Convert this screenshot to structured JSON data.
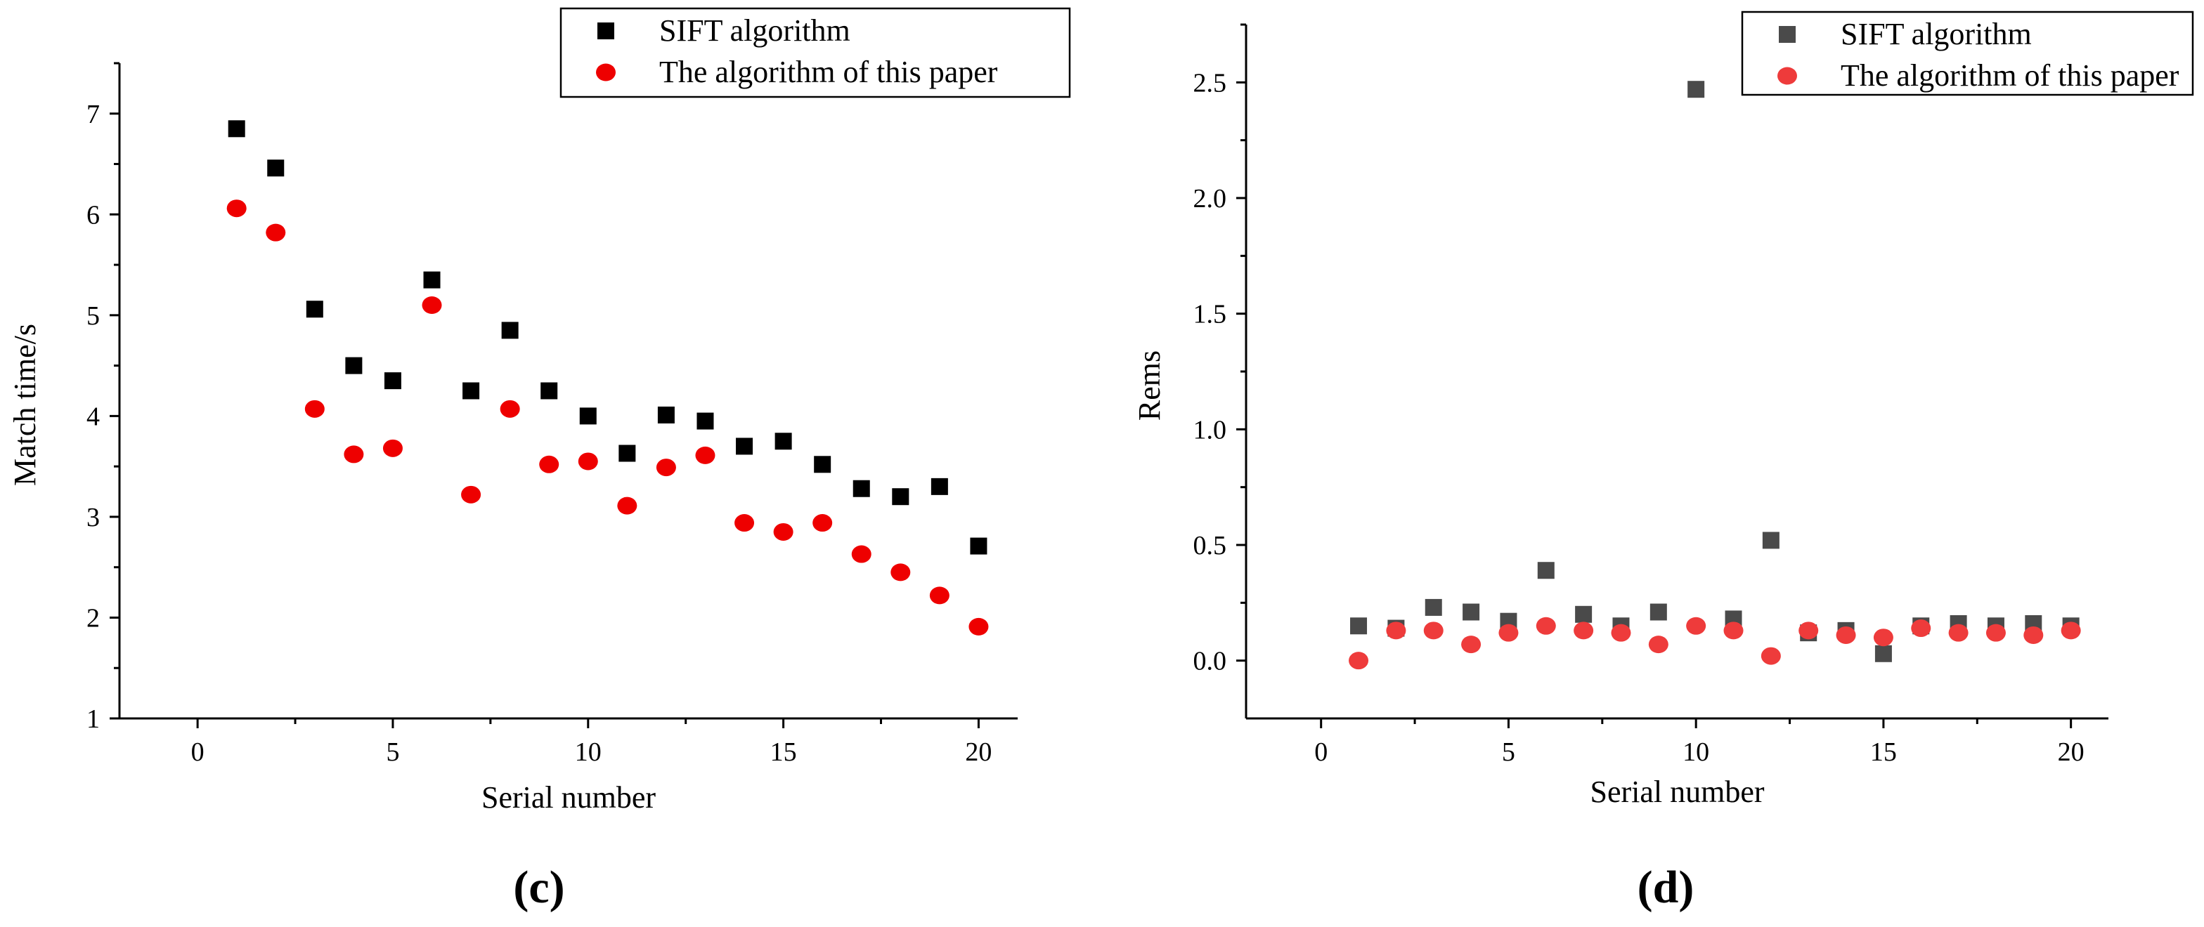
{
  "chart_data": [
    {
      "type": "scatter",
      "panel_label": "(c)",
      "title": "",
      "xlabel": "Serial number",
      "ylabel": "Match time/s",
      "xlim": [
        -2,
        21
      ],
      "ylim": [
        1,
        7.5
      ],
      "xticks": [
        0,
        5,
        10,
        15,
        20
      ],
      "yticks": [
        1,
        2,
        3,
        4,
        5,
        6,
        7
      ],
      "grid": false,
      "legend_position": "top-right",
      "x": [
        1,
        2,
        3,
        4,
        5,
        6,
        7,
        8,
        9,
        10,
        11,
        12,
        13,
        14,
        15,
        16,
        17,
        18,
        19,
        20
      ],
      "series": [
        {
          "name": "SIFT algorithm",
          "marker": "square",
          "color": "#000000",
          "values": [
            6.85,
            6.46,
            5.06,
            4.5,
            4.35,
            5.35,
            4.25,
            4.85,
            4.25,
            4.0,
            3.63,
            4.01,
            3.95,
            3.7,
            3.75,
            3.52,
            3.28,
            3.2,
            3.3,
            2.71
          ]
        },
        {
          "name": "The algorithm of this paper",
          "marker": "circle",
          "color": "#ee0000",
          "values": [
            6.06,
            5.82,
            4.07,
            3.62,
            3.68,
            5.1,
            3.22,
            4.07,
            3.52,
            3.55,
            3.11,
            3.49,
            3.61,
            2.94,
            2.85,
            2.94,
            2.63,
            2.45,
            2.22,
            1.91
          ]
        }
      ]
    },
    {
      "type": "scatter",
      "panel_label": "(d)",
      "title": "",
      "xlabel": "Serial number",
      "ylabel": "Rems",
      "xlim": [
        -2,
        21
      ],
      "ylim": [
        -0.25,
        2.75
      ],
      "xticks": [
        0,
        5,
        10,
        15,
        20
      ],
      "yticks": [
        0.0,
        0.5,
        1.0,
        1.5,
        2.0,
        2.5
      ],
      "yticklabels": [
        "0.0",
        "0.5",
        "1.0",
        "1.5",
        "2.0",
        "2.5"
      ],
      "grid": false,
      "legend_position": "top-right",
      "x": [
        1,
        2,
        3,
        4,
        5,
        6,
        7,
        8,
        9,
        10,
        11,
        12,
        13,
        14,
        15,
        16,
        17,
        18,
        19,
        20
      ],
      "series": [
        {
          "name": "SIFT algorithm",
          "marker": "square",
          "color": "#4a4a4a",
          "values": [
            0.15,
            0.14,
            0.23,
            0.21,
            0.17,
            0.39,
            0.2,
            0.15,
            0.21,
            2.47,
            0.18,
            0.52,
            0.12,
            0.13,
            0.03,
            0.15,
            0.16,
            0.15,
            0.16,
            0.15
          ]
        },
        {
          "name": "The algorithm of this paper",
          "marker": "circle",
          "color": "#ee3b3b",
          "values": [
            0.0,
            0.13,
            0.13,
            0.07,
            0.12,
            0.15,
            0.13,
            0.12,
            0.07,
            0.15,
            0.13,
            0.02,
            0.13,
            0.11,
            0.1,
            0.14,
            0.12,
            0.12,
            0.11,
            0.13
          ]
        }
      ]
    }
  ]
}
